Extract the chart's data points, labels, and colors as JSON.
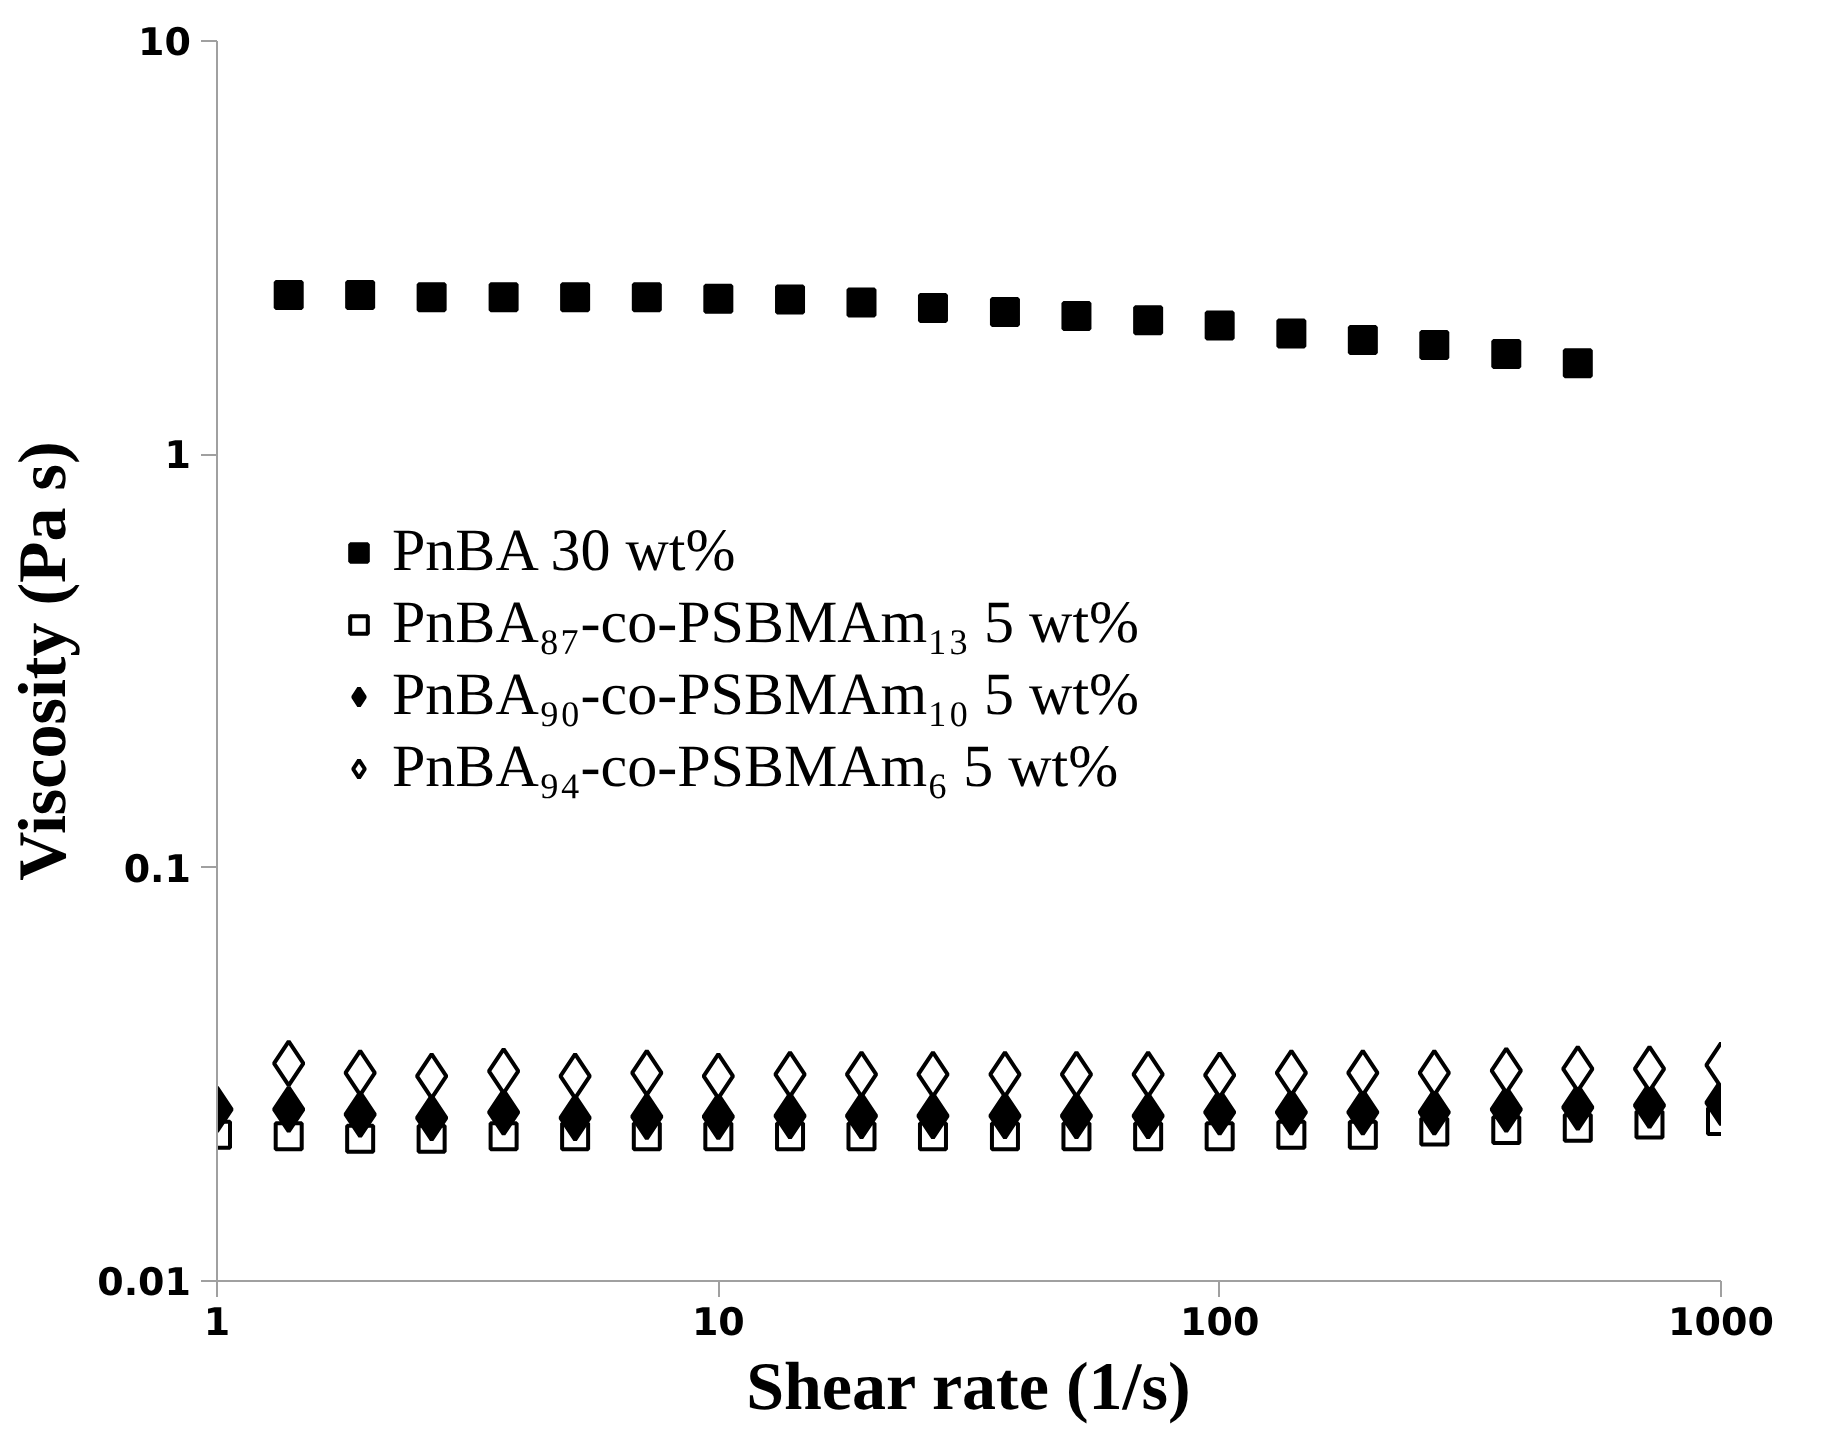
{
  "chart_data": {
    "type": "scatter",
    "xlabel": "Shear rate (1/s)",
    "ylabel": "Viscosity (Pa s)",
    "log": "xy",
    "grid": false,
    "legend": "left",
    "xlim": [
      1,
      1000
    ],
    "xticks": [
      1,
      10,
      100,
      1000
    ],
    "ylim": [
      0.01,
      10
    ],
    "yticks": [
      0.01,
      0.1,
      1,
      10
    ],
    "x": [
      1,
      1.39,
      1.93,
      2.68,
      3.73,
      5.18,
      7.2,
      10,
      13.9,
      19.3,
      26.8,
      37.3,
      51.8,
      72,
      100,
      139,
      193,
      268,
      373,
      518,
      720,
      1000
    ],
    "series": [
      {
        "name": "PnBA 30 wt%",
        "color": "#000000",
        "marker": "square",
        "values": [
          null,
          2.43,
          2.43,
          2.4,
          2.4,
          2.4,
          2.4,
          2.38,
          2.37,
          2.33,
          2.26,
          2.21,
          2.16,
          2.11,
          2.05,
          1.96,
          1.89,
          1.84,
          1.75,
          1.66,
          null,
          null
        ]
      },
      {
        "name": "PnBA₈₇-co-PSBMAm₁₃ 5 wt%",
        "color": "#000000",
        "marker": "square-open",
        "values": [
          0.0226,
          0.0224,
          0.0221,
          0.0221,
          0.0224,
          0.0224,
          0.0224,
          0.0224,
          0.0224,
          0.0224,
          0.0224,
          0.0224,
          0.0224,
          0.0224,
          0.0224,
          0.0226,
          0.0226,
          0.023,
          0.0232,
          0.0235,
          0.0239,
          0.0244
        ]
      },
      {
        "name": "PnBA₉₀-co-PSBMAm₁₀ 5 wt%",
        "color": "#000000",
        "marker": "diamond",
        "values": [
          0.026,
          0.026,
          0.0253,
          0.0248,
          0.0256,
          0.0248,
          0.025,
          0.025,
          0.0251,
          0.0251,
          0.0251,
          0.0251,
          0.0251,
          0.0251,
          0.0256,
          0.0256,
          0.0256,
          0.0256,
          0.026,
          0.0263,
          0.0266,
          0.027
        ]
      },
      {
        "name": "PnBA₉₄-co-PSBMAm₆ 5 wt%",
        "color": "#000000",
        "marker": "diamond-open",
        "values": [
          null,
          0.0336,
          0.0319,
          0.0313,
          0.0322,
          0.0313,
          0.0319,
          0.0313,
          0.0316,
          0.0316,
          0.0316,
          0.0316,
          0.0316,
          0.0316,
          0.0315,
          0.0319,
          0.0319,
          0.0319,
          0.0323,
          0.0326,
          0.0326,
          0.0333
        ]
      }
    ]
  }
}
